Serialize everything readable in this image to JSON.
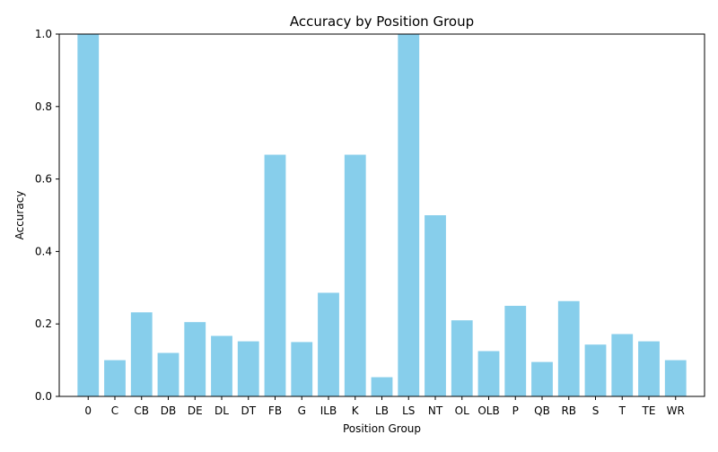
{
  "chart_data": {
    "type": "bar",
    "title": "Accuracy by Position Group",
    "xlabel": "Position Group",
    "ylabel": "Accuracy",
    "ylim": [
      0,
      1.0
    ],
    "yticks": [
      "0.0",
      "0.2",
      "0.4",
      "0.6",
      "0.8",
      "1.0"
    ],
    "grid": false,
    "bar_color": "#87ceeb",
    "categories": [
      "0",
      "C",
      "CB",
      "DB",
      "DE",
      "DL",
      "DT",
      "FB",
      "G",
      "ILB",
      "K",
      "LB",
      "LS",
      "NT",
      "OL",
      "OLB",
      "P",
      "QB",
      "RB",
      "S",
      "T",
      "TE",
      "WR"
    ],
    "values": [
      1.0,
      0.1,
      0.232,
      0.12,
      0.205,
      0.167,
      0.152,
      0.667,
      0.15,
      0.286,
      0.667,
      0.053,
      1.0,
      0.5,
      0.21,
      0.125,
      0.25,
      0.095,
      0.263,
      0.143,
      0.172,
      0.152,
      0.1
    ]
  }
}
